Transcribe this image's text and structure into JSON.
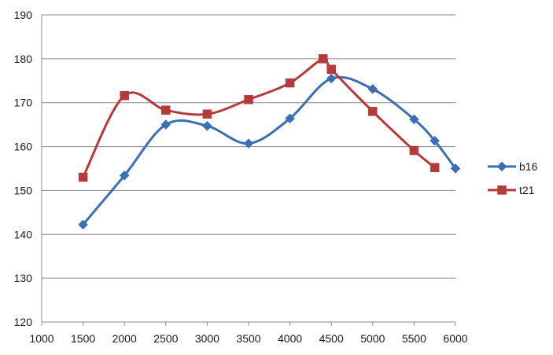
{
  "chart_data": {
    "type": "line",
    "smooth": true,
    "xlim": [
      1000,
      6000
    ],
    "ylim": [
      120,
      190
    ],
    "x_ticks": [
      1000,
      1500,
      2000,
      2500,
      3000,
      3500,
      4000,
      4500,
      5000,
      5500,
      6000
    ],
    "y_ticks": [
      120,
      130,
      140,
      150,
      160,
      170,
      180,
      190
    ],
    "grid": "horizontal",
    "legend_position": "right",
    "series": [
      {
        "name": "b16",
        "color": "#3a6eb5",
        "marker": "diamond",
        "x": [
          1500,
          2000,
          2500,
          3000,
          3500,
          4000,
          4500,
          5000,
          5500,
          5750,
          6000
        ],
        "y": [
          142.2,
          153.4,
          165,
          164.7,
          160.7,
          166.4,
          175.5,
          173.1,
          166.2,
          161.3,
          155
        ]
      },
      {
        "name": "t21",
        "color": "#b53a3a",
        "marker": "square",
        "x": [
          1500,
          2000,
          2500,
          3000,
          3500,
          4000,
          4400,
          4500,
          5000,
          5500,
          5750
        ],
        "y": [
          153,
          171.6,
          168.3,
          167.4,
          170.7,
          174.5,
          180,
          177.6,
          168,
          159.1,
          155.2
        ]
      }
    ]
  }
}
